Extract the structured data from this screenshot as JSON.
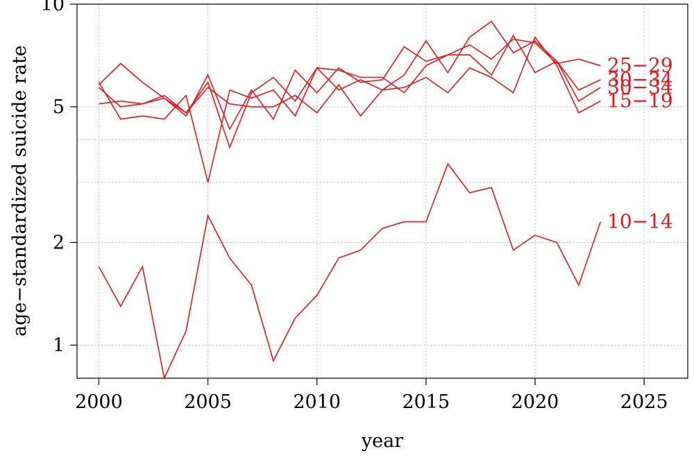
{
  "chart_data": {
    "type": "line",
    "xlabel": "year",
    "ylabel": "age−standardized suicide rate",
    "yscale": "log",
    "xlim": [
      1999,
      2027
    ],
    "ylim": [
      0.8,
      10
    ],
    "xticks": [
      2000,
      2005,
      2010,
      2015,
      2020,
      2025
    ],
    "xtick_labels": [
      "2000",
      "2005",
      "2010",
      "2015",
      "2020",
      "2025"
    ],
    "yticks": [
      1,
      2,
      5,
      10
    ],
    "ytick_labels": [
      "1",
      "2",
      "5",
      "10"
    ],
    "grid": true,
    "line_color": "#e8141c",
    "x": [
      2000,
      2001,
      2002,
      2003,
      2004,
      2005,
      2006,
      2007,
      2008,
      2009,
      2010,
      2011,
      2012,
      2013,
      2014,
      2015,
      2016,
      2017,
      2018,
      2019,
      2020,
      2021,
      2022,
      2023
    ],
    "series": [
      {
        "name": "25−29",
        "values": [
          5.1,
          5.2,
          5.1,
          5.3,
          4.7,
          6.2,
          4.3,
          5.6,
          4.6,
          6.4,
          5.5,
          6.5,
          5.9,
          6.0,
          7.5,
          6.8,
          7.1,
          7.6,
          6.9,
          7.9,
          7.7,
          6.7,
          6.9,
          6.6
        ]
      },
      {
        "name": "30−34",
        "values": [
          5.8,
          6.7,
          5.9,
          5.3,
          4.8,
          5.9,
          3.8,
          5.5,
          6.1,
          5.2,
          6.5,
          6.4,
          6.1,
          6.1,
          5.5,
          6.6,
          7.1,
          7.1,
          6.2,
          8.1,
          6.3,
          6.8,
          5.6,
          6.0
        ]
      },
      {
        "name": "30−34",
        "values": [
          5.7,
          5.0,
          5.1,
          5.4,
          4.8,
          5.7,
          5.1,
          5.0,
          5.0,
          5.4,
          4.8,
          5.8,
          4.7,
          5.6,
          6.2,
          7.8,
          6.3,
          8.0,
          8.9,
          7.2,
          7.8,
          6.8,
          5.2,
          5.7
        ]
      },
      {
        "name": "15−19",
        "values": [
          5.9,
          4.6,
          4.7,
          4.6,
          5.4,
          3.0,
          5.6,
          5.3,
          5.6,
          4.7,
          6.5,
          5.6,
          6.0,
          5.6,
          5.7,
          6.1,
          5.5,
          6.5,
          6.1,
          5.5,
          8.0,
          6.6,
          4.8,
          5.2
        ]
      },
      {
        "name": "10−14",
        "values": [
          1.7,
          1.3,
          1.7,
          0.8,
          1.1,
          2.4,
          1.8,
          1.5,
          0.9,
          1.2,
          1.4,
          1.8,
          1.9,
          2.2,
          2.3,
          2.3,
          3.4,
          2.8,
          2.9,
          1.9,
          2.1,
          2.0,
          1.5,
          2.3
        ]
      }
    ]
  }
}
